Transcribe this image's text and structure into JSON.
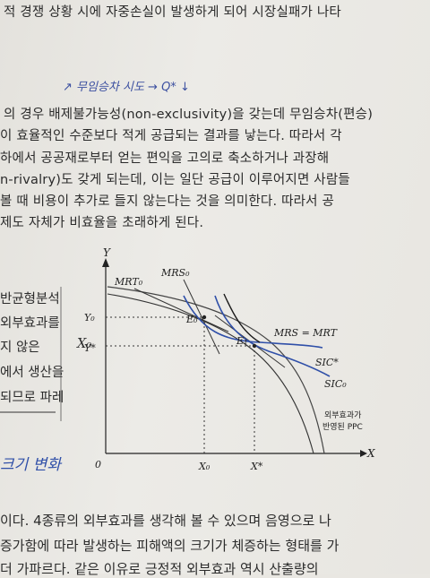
{
  "text_lines": [
    "적 경쟁 상황 시에 자중손실이 발생하게 되어 시장실패가 나타",
    "의 경우 배제불가능성(non-exclusivity)을 갖는데 무임승차(편승)",
    "이 효율적인 수준보다 적게 공급되는 결과를 낳는다. 따라서 각",
    "하에서 공공재로부터 얻는 편익을 고의로 축소하거나 과장해",
    "n-rivalry)도 갖게 되는데, 이는 일단 공급이 이루어지면 사람들",
    "볼 때 비용이 추가로 들지 않는다는 것을 의미한다. 따라서 공",
    "제도 자체가 비효율을 초래하게 된다."
  ],
  "handwriting": {
    "top_note": "↗ 무임승차 시도 → Q* ↓",
    "left_note": "크기 변화"
  },
  "side_text": [
    "반균형분석",
    "외부효과를",
    "지 않은",
    "에서 생산을",
    "되므로 파레"
  ],
  "side_x0": "X₀",
  "bottom_lines": [
    "이다. 4종류의 외부효과를 생각해 볼 수 있으며 음영으로 나",
    "증가함에 따라 발생하는 피해액의 크기가 체증하는 형태를 가",
    "더 가파르다. 같은 이유로 긍정적 외부효과 역시 산출량의"
  ],
  "diagram": {
    "y_axis": "Y",
    "x_axis": "X",
    "origin": "0",
    "y0": "Y₀",
    "ystar": "Y*",
    "x0": "X₀",
    "xstar": "X*",
    "mrt0": "MRT₀",
    "mrs0": "MRS₀",
    "e0": "E₀",
    "e1": "E₁",
    "mrs_eq": "MRS = MRT",
    "sicstar": "SIC*",
    "sic0": "SIC₀",
    "ppc_note_1": "외부효과가",
    "ppc_note_2": "반영된 PPC"
  },
  "colors": {
    "ink": "#222222",
    "pen_blue": "#2f4fa8",
    "pen_black": "#1a1a1a"
  }
}
